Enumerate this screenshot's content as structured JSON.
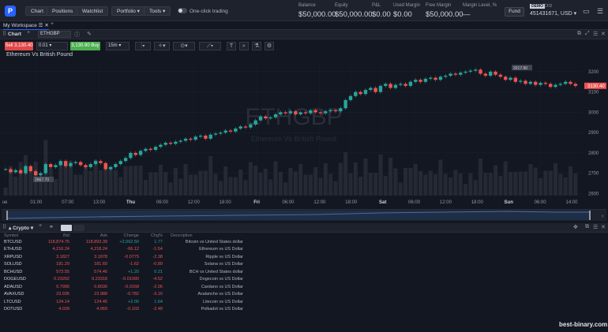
{
  "topbar": {
    "logo": "P",
    "buttons": [
      "Chart",
      "Positions",
      "Watchlist"
    ],
    "portfolio": "Portfolio ▾",
    "tools": "Tools ▾",
    "one_click": "One-click trading",
    "account": [
      {
        "label": "Balance",
        "value": "$50,000.00"
      },
      {
        "label": "Equity",
        "value": "$50,000.00"
      },
      {
        "label": "P&L",
        "value": "$0.00"
      },
      {
        "label": "Used Margin",
        "value": "$0.00"
      },
      {
        "label": "Free Margin",
        "value": "$50,000.00"
      },
      {
        "label": "Margin Level, %",
        "value": "—"
      }
    ],
    "fund": "Fund",
    "demo": "DEMO",
    "cfd": "CFD",
    "account_number": "451431671, USD ▾"
  },
  "workspace": {
    "tab": "My Workspace"
  },
  "chart_panel": {
    "tab": "Chart",
    "symbol": "ETHGBP"
  },
  "toolbar": {
    "sell": "Sell 3,130.40",
    "qty": "0.01",
    "buy": "3,130.90 Buy",
    "timeframe": "15m"
  },
  "chart_title": "Ethereum Vs British Pound",
  "chart_data": {
    "type": "line",
    "title": "Ethereum Vs British Pound",
    "watermark_symbol": "ETHGBP",
    "watermark_desc": "Ethereum Vs British Pound",
    "y_ticks": [
      3200,
      3100,
      3000,
      2900,
      2800,
      2700,
      2600
    ],
    "ylim": [
      2590,
      3250
    ],
    "x_ticks": [
      "ue",
      "01:00",
      "07:00",
      "13:00",
      "Thu",
      "06:00",
      "12:00",
      "18:00",
      "Fri",
      "06:00",
      "12:00",
      "18:00",
      "Sat",
      "06:00",
      "12:00",
      "18:00",
      "Sun",
      "06:00",
      "14:00"
    ],
    "price_label": "3130.40",
    "high_label": "3217.90",
    "low_label": "2667.70",
    "series": [
      {
        "values": [
          2720,
          2705,
          2715,
          2700,
          2735,
          2710,
          2690,
          2700,
          2745,
          2730,
          2740,
          2760,
          2735,
          2750,
          2755,
          2740,
          2730,
          2745,
          2760,
          2750,
          2720,
          2730,
          2745,
          2760,
          2775,
          2800,
          2790,
          2810,
          2820,
          2815,
          2830,
          2840,
          2850,
          2845,
          2855,
          2860,
          2870,
          2865,
          2880,
          2885,
          2870,
          2890,
          2895,
          2900,
          2910,
          2905,
          2920,
          2930,
          2925,
          2940,
          2960,
          2980,
          2970,
          2975,
          2990,
          3000,
          2995,
          3005,
          2990,
          3000,
          2995,
          3010,
          3000,
          2995,
          3005,
          3010,
          3005,
          3020,
          3060,
          3080,
          3100,
          3090,
          3110,
          3120,
          3100,
          3130,
          3140,
          3120,
          3135,
          3140,
          3130,
          3150,
          3160,
          3150,
          3165,
          3170,
          3160,
          3175,
          3180,
          3190,
          3185,
          3195,
          3200,
          3205,
          3210,
          3190,
          3180,
          3200,
          3185,
          3175,
          3160,
          3170,
          3150,
          3155,
          3140,
          3150,
          3135,
          3145,
          3140,
          3125,
          3135,
          3140,
          3150,
          3140,
          3130
        ]
      }
    ]
  },
  "watchlist": {
    "title": "▴ Crypto ▾",
    "columns": [
      "Symbol",
      "Bid",
      "Ask",
      "Change",
      "Chg%",
      "Description"
    ],
    "rows": [
      {
        "symbol": "BTCUSD",
        "bid": "118,874.75",
        "ask": "118,893.39",
        "change": "+2,062.50",
        "pct": "1.77",
        "desc": "Bitcoin vs United States dollar",
        "up": true
      },
      {
        "symbol": "ETHUSD",
        "bid": "4,216.24",
        "ask": "4,218.24",
        "change": "-66.12",
        "pct": "-1.54",
        "desc": "Ethereum vs US Dollar",
        "up": false
      },
      {
        "symbol": "XRPUSD",
        "bid": "3.1827",
        "ask": "3.1878",
        "change": "-0.0775",
        "pct": "-2.38",
        "desc": "Ripple vs US Dollar",
        "up": false
      },
      {
        "symbol": "SOLUSD",
        "bid": "181.29",
        "ask": "181.60",
        "change": "-1.62",
        "pct": "-0.89",
        "desc": "Solana vs US Dollar",
        "up": false
      },
      {
        "symbol": "BCHUSD",
        "bid": "573.55",
        "ask": "574.46",
        "change": "+1.20",
        "pct": "0.21",
        "desc": "BCH vs United States dollar",
        "up": true
      },
      {
        "symbol": "DOGEUSD",
        "bid": "0.23202",
        "ask": "0.23318",
        "change": "-0.01090",
        "pct": "-4.52",
        "desc": "Dogecoin vs US Dollar",
        "up": false
      },
      {
        "symbol": "ADAUSD",
        "bid": "0.7990",
        "ask": "0.8030",
        "change": "-0.0168",
        "pct": "-2.06",
        "desc": "Cardano vs US Dollar",
        "up": false
      },
      {
        "symbol": "AVAXUSD",
        "bid": "23.936",
        "ask": "23.988",
        "change": "-0.782",
        "pct": "-3.16",
        "desc": "Avalanche vs US Dollar",
        "up": false
      },
      {
        "symbol": "LTCUSD",
        "bid": "124.14",
        "ask": "124.45",
        "change": "+2.00",
        "pct": "1.64",
        "desc": "Litecoin vs US Dollar",
        "up": true
      },
      {
        "symbol": "DOTUSD",
        "bid": "4.039",
        "ask": "4.069",
        "change": "-0.103",
        "pct": "-2.49",
        "desc": "Polkadot vs US Dollar",
        "up": false
      }
    ]
  },
  "watermark": "best-binary.com",
  "colors": {
    "up": "#26a69a",
    "down": "#ef5350",
    "bg": "#131722",
    "accent": "#2962ff"
  }
}
